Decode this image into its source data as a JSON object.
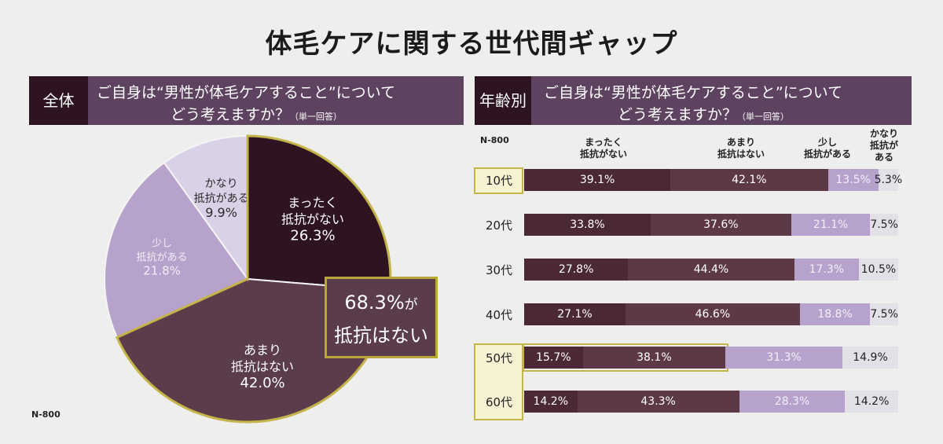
{
  "title": "体毛ケアに関する世代間ギャップ",
  "left": {
    "tag": "全体",
    "question_line1": "ご自身は“男性が体毛ケアすること”について",
    "question_line2": "どう考えますか？",
    "question_note": "（単一回答）",
    "n_note": "N-800",
    "callout_value": "68.3%",
    "callout_suffix": "が",
    "callout_line2": "抵抗はない"
  },
  "right": {
    "tag": "年齢別",
    "question_line1": "ご自身は“男性が体毛ケアすること”について",
    "question_line2": "どう考えますか？",
    "question_note": "（単一回答）",
    "n_note": "N-800",
    "col_heads": [
      [
        "まったく",
        "抵抗がない"
      ],
      [
        "あまり",
        "抵抗はない"
      ],
      [
        "少し",
        "抵抗がある"
      ],
      [
        "かなり",
        "抵抗が",
        "ある"
      ]
    ]
  },
  "colors": {
    "dark": "#4a2836",
    "mid": "#5d3948",
    "light": "#b6a2cc",
    "pale": "#e4e0e8",
    "highlight": "#c4b44a",
    "header": "#5e4360"
  },
  "chart_data": [
    {
      "type": "pie",
      "title": "全体",
      "slices": [
        {
          "label": "まったく抵抗がない",
          "value": 26.3,
          "text": "26.3%"
        },
        {
          "label": "あまり抵抗はない",
          "value": 42.0,
          "text": "42.0%"
        },
        {
          "label": "少し抵抗がある",
          "value": 21.8,
          "text": "21.8%"
        },
        {
          "label": "かなり抵抗がある",
          "value": 9.9,
          "text": "9.9%"
        }
      ]
    },
    {
      "type": "bar",
      "stacked": true,
      "orientation": "horizontal",
      "title": "年齢別",
      "categories": [
        "10代",
        "20代",
        "30代",
        "40代",
        "50代",
        "60代"
      ],
      "series": [
        {
          "name": "まったく抵抗がない",
          "values": [
            39.1,
            33.8,
            27.8,
            27.1,
            15.7,
            14.2
          ],
          "labels": [
            "39.1%",
            "33.8%",
            "27.8%",
            "27.1%",
            "15.7%",
            "14.2%"
          ]
        },
        {
          "name": "あまり抵抗はない",
          "values": [
            42.1,
            37.6,
            44.4,
            46.6,
            38.1,
            43.3
          ],
          "labels": [
            "42.1%",
            "37.6%",
            "44.4%",
            "46.6%",
            "38.1%",
            "43.3%"
          ]
        },
        {
          "name": "少し抵抗がある",
          "values": [
            13.5,
            21.1,
            17.3,
            18.8,
            31.3,
            28.3
          ],
          "labels": [
            "13.5%",
            "21.1%",
            "17.3%",
            "18.8%",
            "31.3%",
            "28.3%"
          ]
        },
        {
          "name": "かなり抵抗がある",
          "values": [
            5.3,
            7.5,
            10.5,
            7.5,
            14.9,
            14.2
          ],
          "labels": [
            "5.3%",
            "7.5%",
            "10.5%",
            "7.5%",
            "14.9%",
            "14.2%"
          ]
        }
      ],
      "highlighted_categories": [
        "10代",
        "50代",
        "60代"
      ]
    }
  ]
}
